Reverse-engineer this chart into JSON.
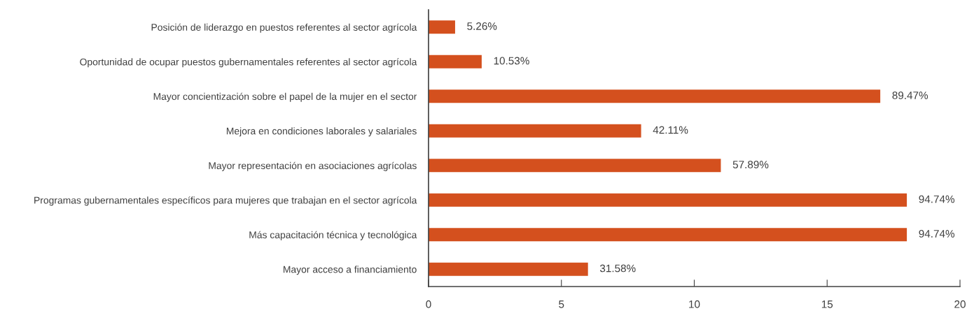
{
  "chart_data": {
    "type": "bar",
    "orientation": "horizontal",
    "categories": [
      "Posición de liderazgo en puestos referentes al sector agrícola",
      "Oportunidad de ocupar puestos gubernamentales referentes al sector agrícola",
      "Mayor concientización sobre el papel de la mujer en el sector",
      "Mejora en condiciones laborales y salariales",
      "Mayor representación en asociaciones agrícolas",
      "Programas gubernamentales específicos para mujeres que trabajan en el sector agrícola",
      "Más capacitación técnica y tecnológica",
      "Mayor acceso a financiamiento"
    ],
    "values": [
      1,
      2,
      17,
      8,
      11,
      18,
      18,
      6
    ],
    "annotations": [
      {
        "text": "5.26%",
        "x": 1,
        "y": "Posición de liderazgo en puestos referentes al sector agrícola"
      },
      {
        "text": "10.53%",
        "x": 2,
        "y": "Oportunidad de ocupar puestos gubernamentales referentes al sector agrícola"
      },
      {
        "text": "89.47%",
        "x": 17,
        "y": "Mayor concientización sobre el papel de la mujer en el sector"
      },
      {
        "text": "42.11%",
        "x": 8,
        "y": "Mejora en condiciones laborales y salariales"
      },
      {
        "text": "57.89%",
        "x": 11,
        "y": "Mayor representación en asociaciones agrícolas"
      },
      {
        "text": "94.74%",
        "x": 18,
        "y": "Programas gubernamentales específicos para mujeres que trabajan en el sector agrícola"
      },
      {
        "text": "94.74%",
        "x": 18,
        "y": "Más capacitación técnica y tecnológica"
      },
      {
        "text": "31.58%",
        "x": 6,
        "y": "Mayor acceso a financiamiento"
      }
    ],
    "color": "#d4501e",
    "xlim": [
      0,
      20
    ],
    "xticks": [
      0,
      5,
      10,
      15,
      20
    ],
    "grid": false
  }
}
